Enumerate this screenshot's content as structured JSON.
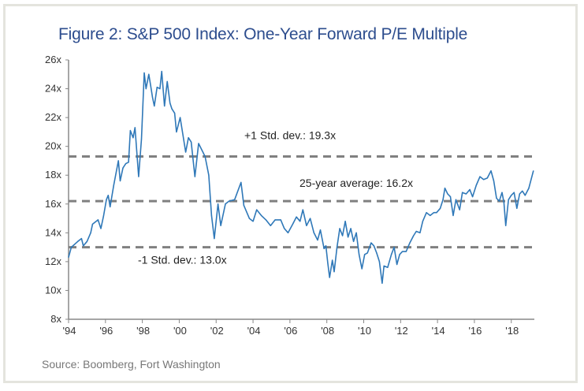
{
  "chart_data": {
    "type": "line",
    "title": "Figure 2: S&P 500 Index: One-Year Forward P/E Multiple",
    "source": "Source: Boomberg, Fort Washington",
    "xlabel": "",
    "ylabel": "",
    "xlim": [
      1994,
      2019.25
    ],
    "ylim": [
      8,
      26
    ],
    "grid": false,
    "x_ticks": [
      1994,
      1996,
      1998,
      2000,
      2002,
      2004,
      2006,
      2008,
      2010,
      2012,
      2014,
      2016,
      2018
    ],
    "x_tick_labels": [
      "'94",
      "'96",
      "'98",
      "'00",
      "'02",
      "'04",
      "'06",
      "'08",
      "'10",
      "'12",
      "'14",
      "'16",
      "'18"
    ],
    "y_ticks": [
      8,
      10,
      12,
      14,
      16,
      18,
      20,
      22,
      24,
      26
    ],
    "y_tick_labels": [
      "8x",
      "10x",
      "12x",
      "14x",
      "16x",
      "18x",
      "20x",
      "22x",
      "24x",
      "26x"
    ],
    "colors": {
      "series": "#2f78b8",
      "reference": "#808080",
      "title": "#2d4d8e"
    },
    "reference_lines": [
      {
        "name": "plus-1-std",
        "value": 19.3,
        "label": "+1 Std. dev.: 19.3x"
      },
      {
        "name": "average",
        "value": 16.2,
        "label": "25-year average: 16.2x"
      },
      {
        "name": "minus-1-std",
        "value": 13.0,
        "label": "-1 Std. dev.: 13.0x"
      }
    ],
    "series": [
      {
        "name": "Forward P/E",
        "x": [
          1994.0,
          1994.15,
          1994.5,
          1994.7,
          1994.8,
          1995.0,
          1995.2,
          1995.3,
          1995.6,
          1995.75,
          1995.9,
          1996.05,
          1996.15,
          1996.25,
          1996.45,
          1996.7,
          1996.8,
          1996.95,
          1997.1,
          1997.25,
          1997.35,
          1997.5,
          1997.6,
          1997.8,
          1997.95,
          1998.1,
          1998.2,
          1998.35,
          1998.45,
          1998.55,
          1998.65,
          1998.8,
          1998.95,
          1999.05,
          1999.2,
          1999.35,
          1999.5,
          1999.6,
          1999.75,
          1999.85,
          2000.05,
          2000.35,
          2000.5,
          2000.65,
          2000.85,
          2001.05,
          2001.4,
          2001.6,
          2001.75,
          2001.9,
          2002.1,
          2002.25,
          2002.5,
          2002.7,
          2003.0,
          2003.35,
          2003.5,
          2003.8,
          2004.0,
          2004.2,
          2004.45,
          2004.7,
          2004.95,
          2005.2,
          2005.5,
          2005.7,
          2005.9,
          2006.15,
          2006.35,
          2006.55,
          2006.7,
          2006.9,
          2007.1,
          2007.3,
          2007.5,
          2007.65,
          2007.85,
          2007.95,
          2008.05,
          2008.15,
          2008.3,
          2008.4,
          2008.55,
          2008.7,
          2008.85,
          2009.0,
          2009.15,
          2009.3,
          2009.45,
          2009.6,
          2009.75,
          2009.9,
          2010.05,
          2010.2,
          2010.4,
          2010.55,
          2010.7,
          2010.85,
          2011.0,
          2011.1,
          2011.3,
          2011.5,
          2011.65,
          2011.8,
          2011.95,
          2012.1,
          2012.3,
          2012.5,
          2012.7,
          2012.85,
          2013.05,
          2013.2,
          2013.4,
          2013.6,
          2013.8,
          2013.95,
          2014.15,
          2014.3,
          2014.4,
          2014.55,
          2014.7,
          2014.85,
          2015.0,
          2015.2,
          2015.35,
          2015.55,
          2015.75,
          2015.9,
          2016.1,
          2016.3,
          2016.5,
          2016.7,
          2016.9,
          2017.05,
          2017.2,
          2017.35,
          2017.5,
          2017.6,
          2017.7,
          2017.85,
          2018.0,
          2018.15,
          2018.3,
          2018.45,
          2018.6,
          2018.75,
          2018.95,
          2019.2
        ],
        "y": [
          12.3,
          13.0,
          13.4,
          13.6,
          13.1,
          13.4,
          14.0,
          14.6,
          14.9,
          14.3,
          15.2,
          16.3,
          16.6,
          15.8,
          17.3,
          19.0,
          17.6,
          18.5,
          18.8,
          18.9,
          21.1,
          20.6,
          21.3,
          17.9,
          20.5,
          25.1,
          24.0,
          25.0,
          24.2,
          23.4,
          22.8,
          24.1,
          24.0,
          25.2,
          22.8,
          24.5,
          23.0,
          22.6,
          22.3,
          21.0,
          22.0,
          19.6,
          20.6,
          20.3,
          17.9,
          20.2,
          19.3,
          18.0,
          15.2,
          13.6,
          16.0,
          14.5,
          16.0,
          16.2,
          16.3,
          17.5,
          15.9,
          15.0,
          14.8,
          15.6,
          15.2,
          14.9,
          14.5,
          14.9,
          14.9,
          14.3,
          14.0,
          14.6,
          15.1,
          14.8,
          15.6,
          14.5,
          15.0,
          14.0,
          13.5,
          14.2,
          12.9,
          13.1,
          11.9,
          10.9,
          12.1,
          11.3,
          13.0,
          14.3,
          13.8,
          14.8,
          13.7,
          14.3,
          13.4,
          14.0,
          12.5,
          11.5,
          12.5,
          12.6,
          13.3,
          13.1,
          12.6,
          12.0,
          10.5,
          11.7,
          11.6,
          12.5,
          13.0,
          11.8,
          12.5,
          12.7,
          12.7,
          13.3,
          13.8,
          14.1,
          14.0,
          14.8,
          15.4,
          15.2,
          15.4,
          15.4,
          15.7,
          16.3,
          17.1,
          16.7,
          16.5,
          15.2,
          16.3,
          15.6,
          16.8,
          16.7,
          17.0,
          16.5,
          17.3,
          17.9,
          17.7,
          17.8,
          18.3,
          17.6,
          16.4,
          16.2,
          16.8,
          16.1,
          14.5,
          16.3,
          16.6,
          16.8,
          15.7,
          16.7,
          16.9,
          16.6,
          17.1,
          18.3
        ]
      }
    ]
  }
}
